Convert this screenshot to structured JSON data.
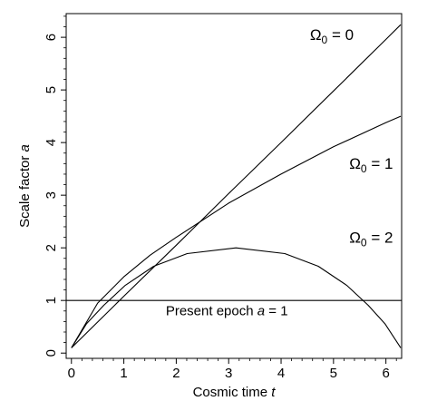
{
  "chart_data": {
    "type": "line",
    "xlabel": "Cosmic time",
    "xlabel_var": "t",
    "ylabel": "Scale factor",
    "ylabel_var": "a",
    "xlim": [
      -0.1,
      6.3
    ],
    "ylim": [
      -0.1,
      6.45
    ],
    "xticks": [
      0,
      1,
      2,
      3,
      4,
      5,
      6
    ],
    "yticks": [
      0,
      1,
      2,
      3,
      4,
      5,
      6
    ],
    "grid": false,
    "series": [
      {
        "name": "Ω0 = 0",
        "x": [
          0,
          1,
          2,
          3,
          4,
          5,
          6,
          6.283
        ],
        "y": [
          0.1,
          1.08,
          2.05,
          3.03,
          4.0,
          4.98,
          5.96,
          6.24
        ]
      },
      {
        "name": "Ω0 = 1",
        "x": [
          0,
          0.5,
          1,
          1.5,
          2,
          3,
          4,
          5,
          6,
          6.283
        ],
        "y": [
          0.1,
          0.95,
          1.45,
          1.86,
          2.2,
          2.85,
          3.4,
          3.92,
          4.38,
          4.5
        ]
      },
      {
        "name": "Ω0 = 2",
        "x": [
          0,
          0.29,
          0.62,
          1.03,
          1.57,
          2.21,
          3.14,
          4.07,
          4.71,
          5.25,
          5.66,
          5.98,
          6.283
        ],
        "y": [
          0.1,
          0.56,
          0.91,
          1.29,
          1.65,
          1.89,
          2.0,
          1.89,
          1.65,
          1.29,
          0.91,
          0.56,
          0.1
        ]
      },
      {
        "name": "Present epoch",
        "x": [
          -0.1,
          6.3
        ],
        "y": [
          1,
          1
        ]
      }
    ],
    "annotations": [
      {
        "symbol": "Ω",
        "sub": "0",
        "rest": " = 0",
        "x": 4.55,
        "y": 5.95
      },
      {
        "symbol": "Ω",
        "sub": "0",
        "rest": " = 1",
        "x": 5.3,
        "y": 3.5
      },
      {
        "symbol": "Ω",
        "sub": "0",
        "rest": " = 2",
        "x": 5.3,
        "y": 2.1
      },
      {
        "text": "Present epoch ",
        "var": "a",
        "rest": " = 1",
        "x": 1.8,
        "y": 0.72
      }
    ]
  }
}
